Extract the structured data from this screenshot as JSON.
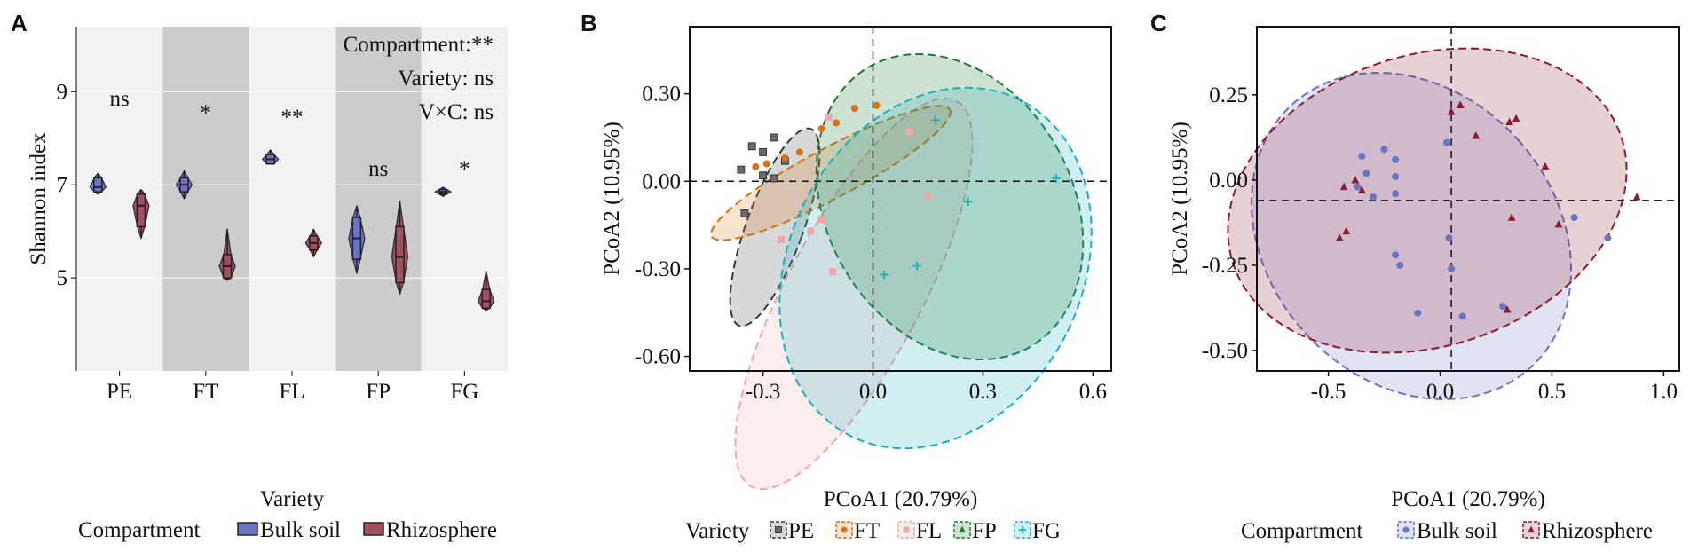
{
  "panels": {
    "a": "A",
    "b": "B",
    "c": "C"
  },
  "chart_data": [
    {
      "type": "violin",
      "title": "",
      "xlabel": "Variety",
      "ylabel": "Shannon index",
      "categories": [
        "PE",
        "FT",
        "FL",
        "FP",
        "FG"
      ],
      "shaded_categories": [
        "FT",
        "FP"
      ],
      "ylim": [
        3.0,
        10.4
      ],
      "yticks": [
        5,
        7,
        9
      ],
      "stats": [
        "Compartment:**",
        "Variety: ns",
        "V×C: ns"
      ],
      "significance": [
        "ns",
        "*",
        "**",
        "ns",
        "*"
      ],
      "sig_y": [
        8.7,
        8.4,
        8.3,
        7.2,
        7.2
      ],
      "legend_title": "Compartment",
      "legend": [
        {
          "name": "Bulk soil"
        },
        {
          "name": "Rhizosphere"
        }
      ],
      "series": [
        {
          "name": "Bulk soil",
          "color": "#6a74c4",
          "boxes": [
            {
              "min": 6.8,
              "q1": 6.85,
              "median": 6.95,
              "q3": 7.15,
              "max": 7.25
            },
            {
              "min": 6.7,
              "q1": 6.85,
              "median": 7.0,
              "q3": 7.15,
              "max": 7.3
            },
            {
              "min": 7.45,
              "q1": 7.45,
              "median": 7.55,
              "q3": 7.65,
              "max": 7.75
            },
            {
              "min": 5.1,
              "q1": 5.4,
              "median": 5.85,
              "q3": 6.3,
              "max": 6.55
            },
            {
              "min": 6.75,
              "q1": 6.8,
              "median": 6.85,
              "q3": 6.9,
              "max": 6.95
            }
          ]
        },
        {
          "name": "Rhizosphere",
          "color": "#a05060",
          "boxes": [
            {
              "min": 5.85,
              "q1": 6.1,
              "median": 6.55,
              "q3": 6.8,
              "max": 6.9
            },
            {
              "min": 4.95,
              "q1": 5.0,
              "median": 5.25,
              "q3": 5.5,
              "max": 6.05
            },
            {
              "min": 5.45,
              "q1": 5.6,
              "median": 5.75,
              "q3": 5.9,
              "max": 6.05
            },
            {
              "min": 4.65,
              "q1": 4.9,
              "median": 5.45,
              "q3": 6.1,
              "max": 6.65
            },
            {
              "min": 4.3,
              "q1": 4.35,
              "median": 4.5,
              "q3": 4.75,
              "max": 5.15
            }
          ]
        }
      ]
    },
    {
      "type": "scatter",
      "title": "",
      "xlabel": "PCoA1 (20.79%)",
      "ylabel": "PCoA2 (10.95%)",
      "xlim": [
        -0.5,
        0.65
      ],
      "ylim": [
        -0.65,
        0.53
      ],
      "xticks": [
        -0.3,
        0.0,
        0.3,
        0.6
      ],
      "xtick_labels": [
        "-0.3",
        "0.0",
        "0.3",
        "0.6"
      ],
      "yticks": [
        0.3,
        0.0,
        -0.3,
        -0.6
      ],
      "ytick_labels": [
        "0.30",
        "0.00",
        "-0.30",
        "-0.60"
      ],
      "reference_lines": {
        "x": 0.0,
        "y": 0.0
      },
      "legend_title": "Variety",
      "legend": [
        {
          "name": "PE",
          "color": "#3a3a3a"
        },
        {
          "name": "FT",
          "color": "#d57215"
        },
        {
          "name": "FL",
          "color": "#f2a7a9"
        },
        {
          "name": "FP",
          "color": "#1d7a34"
        },
        {
          "name": "FG",
          "color": "#1ab0c0"
        }
      ],
      "series": [
        {
          "name": "PE",
          "color": "#3a3a3a",
          "marker": "square",
          "x": [
            -0.36,
            -0.33,
            -0.3,
            -0.27,
            -0.24,
            -0.3,
            -0.27,
            -0.35
          ],
          "y": [
            0.04,
            0.12,
            0.1,
            0.15,
            0.07,
            0.02,
            0.01,
            -0.11
          ]
        },
        {
          "name": "FT",
          "color": "#d57215",
          "marker": "circle",
          "x": [
            -0.32,
            -0.29,
            -0.24,
            -0.2,
            -0.14,
            -0.1,
            -0.05,
            0.01
          ],
          "y": [
            0.05,
            0.06,
            0.08,
            0.1,
            0.18,
            0.2,
            0.25,
            0.26
          ]
        },
        {
          "name": "FL",
          "color": "#f2a7a9",
          "marker": "square",
          "x": [
            -0.25,
            -0.17,
            -0.14,
            -0.11,
            0.1,
            0.15,
            -0.12
          ],
          "y": [
            -0.2,
            -0.17,
            -0.13,
            -0.31,
            0.17,
            -0.05,
            0.22
          ]
        },
        {
          "name": "FP",
          "color": "#1d7a34",
          "marker": "triangle",
          "x": 0,
          "y": 0
        },
        {
          "name": "FG",
          "color": "#1ab0c0",
          "marker": "plus",
          "x": [
            0.17,
            0.26,
            0.5,
            0.03,
            0.12
          ],
          "y": [
            0.21,
            -0.07,
            0.01,
            -0.32,
            -0.29
          ]
        }
      ]
    },
    {
      "type": "scatter",
      "title": "",
      "xlabel": "PCoA1 (20.79%)",
      "ylabel": "PCoA2 (10.95%)",
      "xlim": [
        -0.82,
        1.07
      ],
      "ylim": [
        -0.56,
        0.45
      ],
      "xticks": [
        -0.5,
        0.0,
        0.5,
        1.0
      ],
      "xtick_labels": [
        "-0.5",
        "0.0",
        "0.5",
        "1.0"
      ],
      "yticks": [
        0.25,
        0.0,
        -0.25,
        -0.5
      ],
      "ytick_labels": [
        "0.25",
        "0.00",
        "-0.25",
        "-0.50"
      ],
      "reference_lines": {
        "x": 0.05,
        "y": -0.06
      },
      "legend_title": "Compartment",
      "legend": [
        {
          "name": "Bulk soil",
          "color": "#6a74c4"
        },
        {
          "name": "Rhizosphere",
          "color": "#8b1a2e"
        }
      ],
      "series": [
        {
          "name": "Bulk soil",
          "color": "#6a74c4",
          "marker": "circle",
          "x": [
            -0.25,
            -0.35,
            -0.2,
            -0.33,
            -0.3,
            -0.2,
            -0.2,
            -0.37,
            0.03,
            0.04,
            0.05,
            0.6,
            0.75,
            -0.2,
            -0.18,
            -0.1,
            0.1,
            0.28
          ],
          "y": [
            0.09,
            0.07,
            0.06,
            0.02,
            -0.05,
            0.01,
            -0.04,
            -0.02,
            0.11,
            -0.17,
            -0.26,
            -0.11,
            -0.17,
            -0.22,
            -0.25,
            -0.39,
            -0.4,
            -0.37
          ]
        },
        {
          "name": "Rhizosphere",
          "color": "#8b1a2e",
          "marker": "triangle",
          "x": [
            0.05,
            0.09,
            0.31,
            0.34,
            0.16,
            -0.43,
            -0.38,
            -0.35,
            -0.45,
            -0.42,
            0.47,
            0.32,
            0.88,
            0.53,
            0.3
          ],
          "y": [
            0.2,
            0.22,
            0.17,
            0.18,
            0.13,
            -0.02,
            0.0,
            -0.03,
            -0.17,
            -0.15,
            0.04,
            -0.11,
            -0.05,
            -0.13,
            -0.38
          ]
        }
      ]
    }
  ]
}
